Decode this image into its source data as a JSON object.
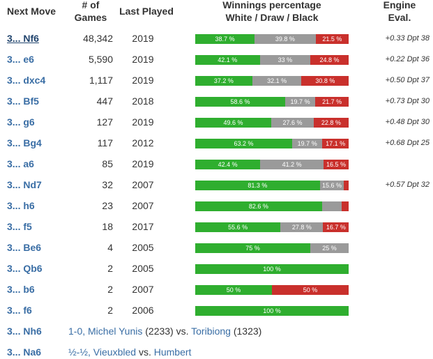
{
  "header": {
    "move": [
      "Next Move"
    ],
    "games": [
      "# of",
      "Games"
    ],
    "last_played": [
      "Last Played"
    ],
    "results": [
      "Winnings percentage",
      "White / Draw / Black"
    ],
    "eval": [
      "Engine",
      "Eval."
    ]
  },
  "table": {
    "rows": [
      {
        "move": "3... Nf6",
        "games": "48,342",
        "last_played": "2019",
        "results": {
          "values": [
            38.7,
            39.8,
            21.5
          ],
          "value_labels": [
            "38.7 %",
            "39.8 %",
            "21.5 %"
          ]
        },
        "eval": "+0.33",
        "depth": "Dpt 38"
      },
      {
        "move": "3... e6",
        "games": "5,590",
        "last_played": "2019",
        "results": {
          "values": [
            42.1,
            33,
            24.8
          ],
          "value_labels": [
            "42.1 %",
            "33 %",
            "24.8 %"
          ]
        },
        "eval": "+0.22",
        "depth": "Dpt 36"
      },
      {
        "move": "3... dxc4",
        "games": "1,117",
        "last_played": "2019",
        "results": {
          "values": [
            37.2,
            32.1,
            30.8
          ],
          "value_labels": [
            "37.2 %",
            "32.1 %",
            "30.8 %"
          ]
        },
        "eval": "+0.50",
        "depth": "Dpt 37"
      },
      {
        "move": "3... Bf5",
        "games": "447",
        "last_played": "2018",
        "results": {
          "values": [
            58.6,
            19.7,
            21.7
          ],
          "value_labels": [
            "58.6 %",
            "19.7 %",
            "21.7 %"
          ]
        },
        "eval": "+0.73",
        "depth": "Dpt 30"
      },
      {
        "move": "3... g6",
        "games": "127",
        "last_played": "2019",
        "results": {
          "values": [
            49.6,
            27.6,
            22.8
          ],
          "value_labels": [
            "49.6 %",
            "27.6 %",
            "22.8 %"
          ]
        },
        "eval": "+0.48",
        "depth": "Dpt 30"
      },
      {
        "move": "3... Bg4",
        "games": "117",
        "last_played": "2012",
        "results": {
          "values": [
            63.2,
            19.7,
            17.1
          ],
          "value_labels": [
            "63.2 %",
            "19.7 %",
            "17.1 %"
          ]
        },
        "eval": "+0.68",
        "depth": "Dpt 25"
      },
      {
        "move": "3... a6",
        "games": "85",
        "last_played": "2019",
        "results": {
          "values": [
            42.4,
            41.2,
            16.5
          ],
          "value_labels": [
            "42.4 %",
            "41.2 %",
            "16.5 %"
          ]
        }
      },
      {
        "move": "3... Nd7",
        "games": "32",
        "last_played": "2007",
        "results": {
          "values": [
            81.3,
            15.6,
            3.1
          ],
          "value_labels": [
            "81.3 %",
            "15.6 %",
            null
          ]
        },
        "eval": "+0.57",
        "depth": "Dpt 32"
      },
      {
        "move": "3... h6",
        "games": "23",
        "last_played": "2007",
        "results": {
          "values": [
            82.6,
            13.0,
            4.4
          ],
          "value_labels": [
            "82.6 %",
            null,
            null
          ]
        }
      },
      {
        "move": "3... f5",
        "games": "18",
        "last_played": "2017",
        "results": {
          "values": [
            55.6,
            27.8,
            16.7
          ],
          "value_labels": [
            "55.6 %",
            "27.8 %",
            "16.7 %"
          ]
        }
      },
      {
        "move": "3... Be6",
        "games": "4",
        "last_played": "2005",
        "results": {
          "values": [
            75,
            25,
            0
          ],
          "value_labels": [
            "75 %",
            "25 %",
            null
          ]
        }
      },
      {
        "move": "3... Qb6",
        "games": "2",
        "last_played": "2005",
        "results": {
          "values": [
            100,
            0,
            0
          ],
          "value_labels": [
            "100 %",
            null,
            null
          ]
        }
      },
      {
        "move": "3... b6",
        "games": "2",
        "last_played": "2007",
        "results": {
          "values": [
            50,
            0,
            50
          ],
          "value_labels": [
            "50 %",
            null,
            "50 %"
          ]
        }
      },
      {
        "move": "3... f6",
        "games": "2",
        "last_played": "2006",
        "results": {
          "values": [
            100,
            0,
            0
          ],
          "value_labels": [
            "100 %",
            null,
            null
          ]
        }
      }
    ]
  },
  "games": [
    {
      "move": "3... Nh6",
      "result": "1-0,",
      "white": "Michel Yunis",
      "white_rating": "(2233)",
      "vs": "vs.",
      "black": "Toribiong",
      "black_rating": "(1323)"
    },
    {
      "move": "3... Na6",
      "result": "½-½,",
      "white": "Vieuxbled",
      "vs": "vs.",
      "black": "Humbert"
    }
  ]
}
